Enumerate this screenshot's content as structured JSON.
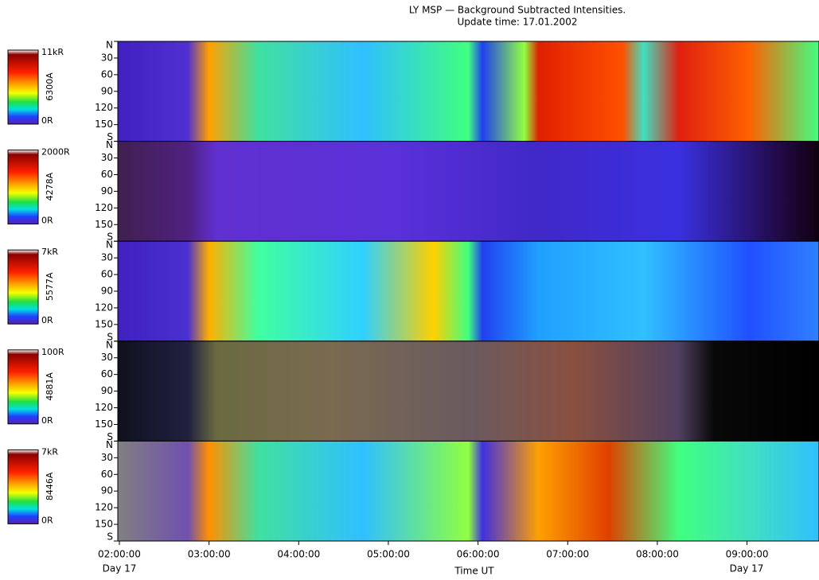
{
  "chart_data": {
    "type": "keogram",
    "title": "LY MSP — Background Subtracted Intensities.",
    "subtitle": "Update time: 17.01.2002",
    "xlabel": "Time UT",
    "xticks": [
      "02:00:00",
      "03:00:00",
      "04:00:00",
      "05:00:00",
      "06:00:00",
      "07:00:00",
      "08:00:00",
      "09:00:00"
    ],
    "start_day_label": "Day 17",
    "end_day_label": "Day 17",
    "ylim": [
      0,
      180
    ],
    "yticks": [
      {
        "value": 0,
        "label": "N"
      },
      30,
      60,
      90,
      120,
      150,
      {
        "value": 180,
        "label": "S"
      }
    ],
    "panels": [
      {
        "name": "6300A",
        "max_label": "11kR",
        "min_label": "0R"
      },
      {
        "name": "4278A",
        "max_label": "2000R",
        "min_label": "0R"
      },
      {
        "name": "5577A",
        "max_label": "7kR",
        "min_label": "0R"
      },
      {
        "name": "4881A",
        "max_label": "100R",
        "min_label": "0R"
      },
      {
        "name": "8446A",
        "max_label": "7kR",
        "min_label": "0R"
      }
    ]
  }
}
